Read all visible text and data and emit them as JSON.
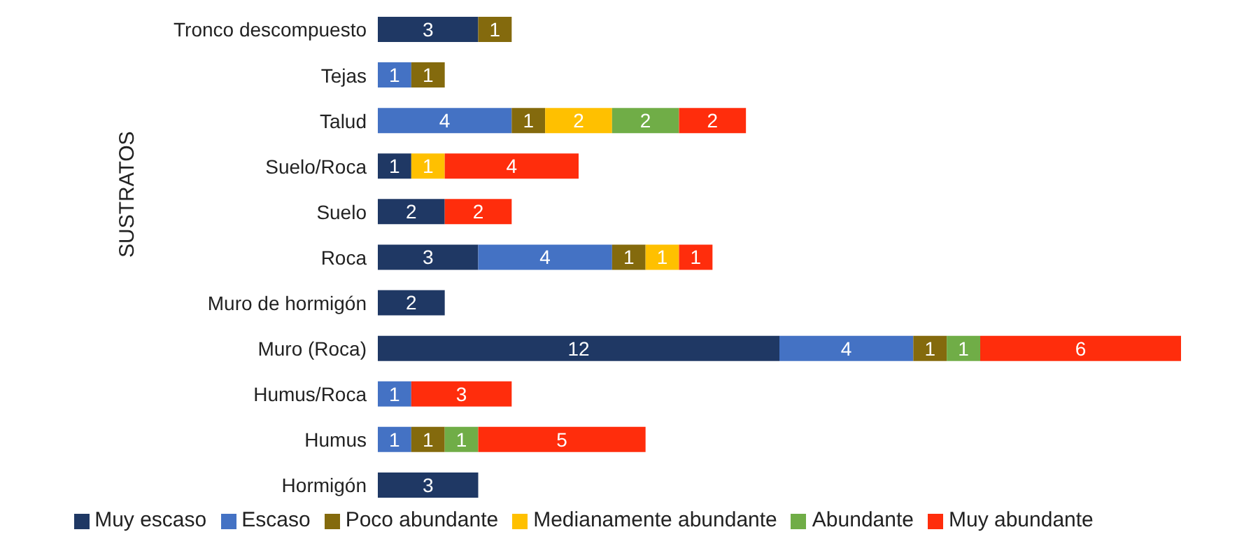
{
  "chart_data": {
    "type": "bar",
    "orientation": "horizontal",
    "stacked": true,
    "data_labels": true,
    "legend": "bottom",
    "ylabel": "SUSTRATOS",
    "categories": [
      "Tronco descompuesto",
      "Tejas",
      "Talud",
      "Suelo/Roca",
      "Suelo",
      "Roca",
      "Muro de hormigón",
      "Muro (Roca)",
      "Humus/Roca",
      "Humus",
      "Hormigón"
    ],
    "series": [
      {
        "name": "Muy escaso",
        "color": "#1f3864",
        "values": [
          3,
          null,
          null,
          1,
          2,
          3,
          2,
          12,
          null,
          null,
          3
        ]
      },
      {
        "name": "Escaso",
        "color": "#4472c4",
        "values": [
          null,
          1,
          4,
          null,
          null,
          4,
          null,
          4,
          1,
          1,
          null
        ]
      },
      {
        "name": "Poco abundante",
        "color": "#846a0d",
        "values": [
          1,
          1,
          1,
          null,
          null,
          1,
          null,
          1,
          null,
          1,
          null
        ]
      },
      {
        "name": "Medianamente abundante",
        "color": "#ffc000",
        "values": [
          null,
          null,
          2,
          1,
          null,
          1,
          null,
          null,
          null,
          null,
          null
        ]
      },
      {
        "name": "Abundante",
        "color": "#70ad47",
        "values": [
          null,
          null,
          2,
          null,
          null,
          null,
          null,
          1,
          null,
          1,
          null
        ]
      },
      {
        "name": "Muy abundante",
        "color": "#ff2d0c",
        "values": [
          null,
          null,
          2,
          4,
          2,
          1,
          null,
          6,
          3,
          5,
          null
        ]
      }
    ]
  }
}
